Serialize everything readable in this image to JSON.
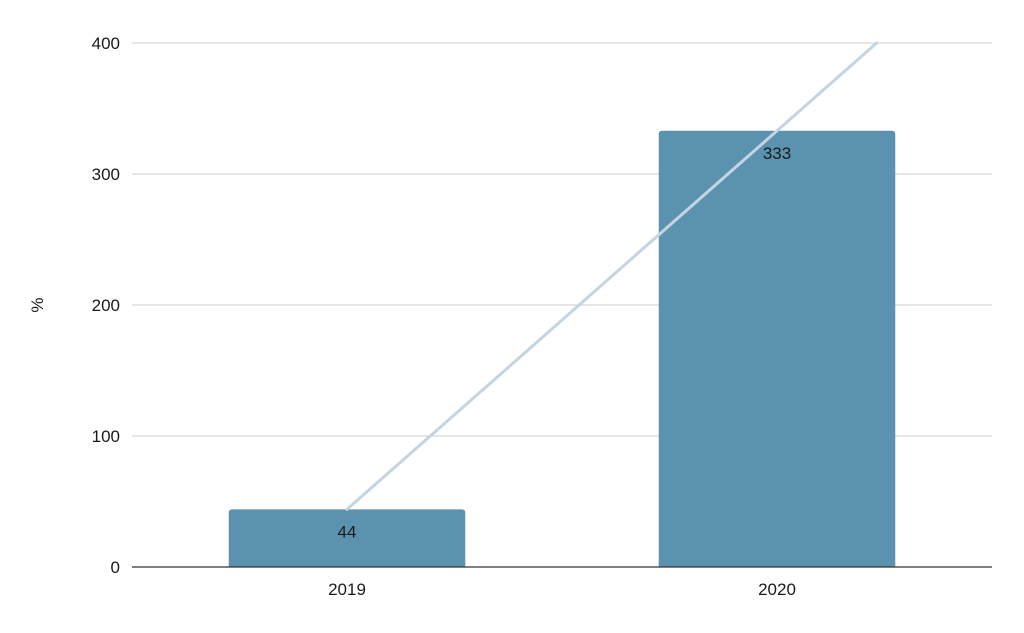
{
  "chart_data": {
    "type": "bar",
    "categories": [
      "2019",
      "2020"
    ],
    "values": [
      44,
      333
    ],
    "data_labels": [
      "44",
      "333"
    ],
    "trendline": {
      "type": "linear",
      "color": "#c3d5e1"
    },
    "title": "",
    "xlabel": "",
    "ylabel": "%",
    "ylim": [
      0,
      400
    ],
    "y_ticks": [
      0,
      100,
      200,
      300,
      400
    ],
    "y_tick_labels": [
      "0",
      "100",
      "200",
      "300",
      "400"
    ],
    "grid": true,
    "legend": "none"
  },
  "colors": {
    "bar": "#5b92af",
    "grid": "#cccccc",
    "axis": "#333333",
    "trendline": "#c3d5e1"
  }
}
